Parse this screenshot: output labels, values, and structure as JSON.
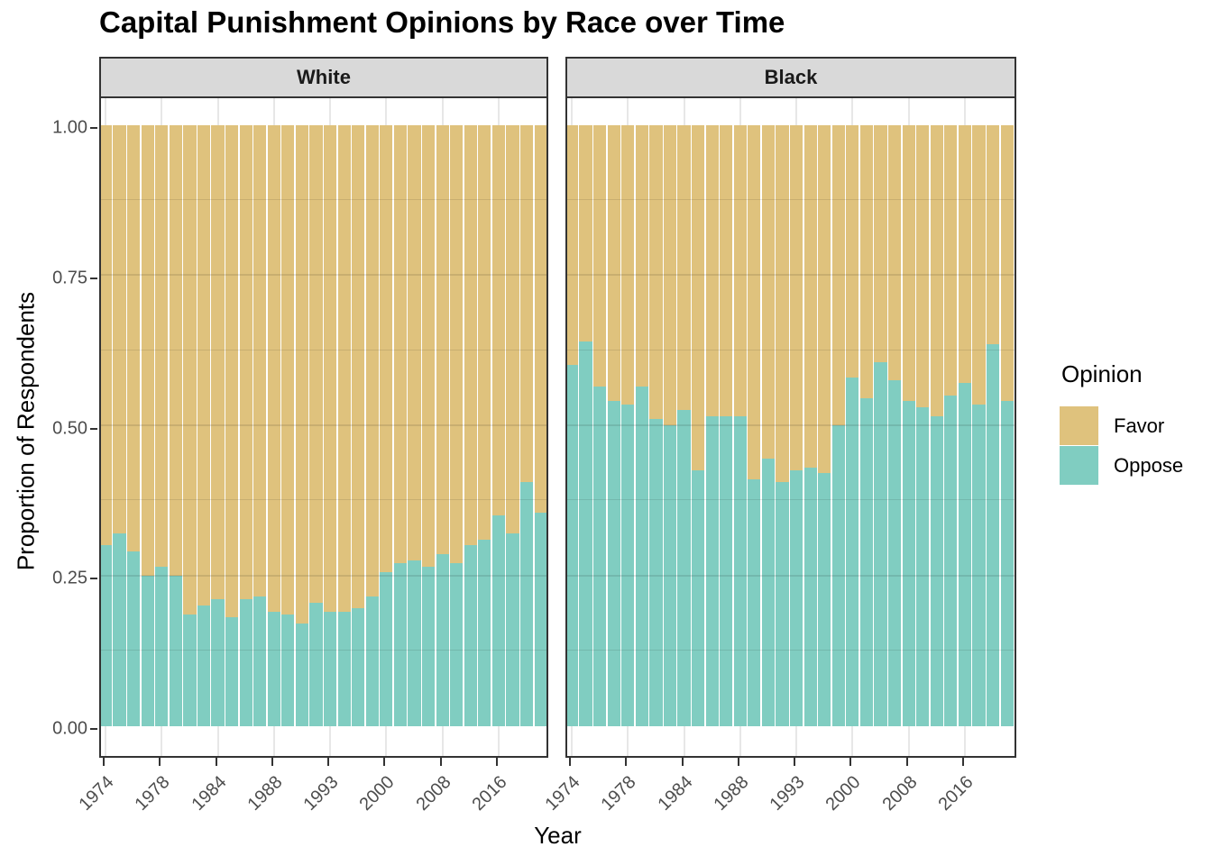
{
  "figure": {
    "title": "Capital Punishment Opinions by Race over Time"
  },
  "axes": {
    "x_title": "Year",
    "y_title": "Proportion of Respondents",
    "y_tick_labels": [
      "0.00",
      "0.25",
      "0.50",
      "0.75",
      "1.00"
    ],
    "y_tick_values": [
      0,
      0.25,
      0.5,
      0.75,
      1.0
    ],
    "y_minor_values": [
      0.125,
      0.375,
      0.625,
      0.875
    ],
    "x_tick_labels": [
      "1974",
      "1978",
      "1984",
      "1988",
      "1993",
      "2000",
      "2008",
      "2016"
    ],
    "x_tick_bar_indices": [
      0,
      4,
      8,
      12,
      16,
      20,
      24,
      28
    ]
  },
  "legend": {
    "title": "Opinion",
    "entries": [
      {
        "label": "Favor",
        "color": "#DFC27D"
      },
      {
        "label": "Oppose",
        "color": "#80CDC1"
      }
    ]
  },
  "colors": {
    "favor": "#DFC27D",
    "oppose": "#80CDC1",
    "strip_fill": "#D9D9D9",
    "panel_border": "#333333",
    "axis_text": "#4D4D4D"
  },
  "chart_data": {
    "type": "bar",
    "stacked": true,
    "normalized": true,
    "title": "Capital Punishment Opinions by Race over Time",
    "xlabel": "Year",
    "ylabel": "Proportion of Respondents",
    "ylim": [
      0,
      1
    ],
    "grid": true,
    "legend_position": "right",
    "years": [
      "1974",
      "1975",
      "1976",
      "1977",
      "1978",
      "1980",
      "1982",
      "1983",
      "1984",
      "1985",
      "1986",
      "1987",
      "1988",
      "1989",
      "1990",
      "1991",
      "1993",
      "1994",
      "1996",
      "1998",
      "2000",
      "2002",
      "2004",
      "2006",
      "2008",
      "2010",
      "2012",
      "2014",
      "2016",
      "2018",
      "2021",
      "2022"
    ],
    "facets": [
      {
        "label": "White",
        "series": [
          {
            "name": "Oppose",
            "values": [
              0.3,
              0.32,
              0.29,
              0.25,
              0.265,
              0.25,
              0.185,
              0.2,
              0.21,
              0.18,
              0.21,
              0.215,
              0.19,
              0.185,
              0.17,
              0.205,
              0.19,
              0.19,
              0.195,
              0.215,
              0.255,
              0.27,
              0.275,
              0.265,
              0.285,
              0.27,
              0.3,
              0.31,
              0.35,
              0.32,
              0.405,
              0.355
            ]
          },
          {
            "name": "Favor",
            "values": [
              0.7,
              0.68,
              0.71,
              0.75,
              0.735,
              0.75,
              0.815,
              0.8,
              0.79,
              0.82,
              0.79,
              0.785,
              0.81,
              0.815,
              0.83,
              0.795,
              0.81,
              0.81,
              0.805,
              0.785,
              0.745,
              0.73,
              0.725,
              0.735,
              0.715,
              0.73,
              0.7,
              0.69,
              0.65,
              0.68,
              0.595,
              0.645
            ]
          }
        ]
      },
      {
        "label": "Black",
        "series": [
          {
            "name": "Oppose",
            "values": [
              0.6,
              0.64,
              0.565,
              0.54,
              0.535,
              0.565,
              0.51,
              0.5,
              0.525,
              0.425,
              0.515,
              0.515,
              0.515,
              0.41,
              0.445,
              0.405,
              0.425,
              0.43,
              0.42,
              0.5,
              0.58,
              0.545,
              0.605,
              0.575,
              0.54,
              0.53,
              0.515,
              0.55,
              0.57,
              0.535,
              0.635,
              0.54
            ]
          },
          {
            "name": "Favor",
            "values": [
              0.4,
              0.36,
              0.435,
              0.46,
              0.465,
              0.435,
              0.49,
              0.5,
              0.475,
              0.575,
              0.485,
              0.485,
              0.485,
              0.59,
              0.555,
              0.595,
              0.575,
              0.57,
              0.58,
              0.5,
              0.42,
              0.455,
              0.395,
              0.425,
              0.46,
              0.47,
              0.485,
              0.45,
              0.43,
              0.465,
              0.365,
              0.46
            ]
          }
        ]
      }
    ]
  }
}
